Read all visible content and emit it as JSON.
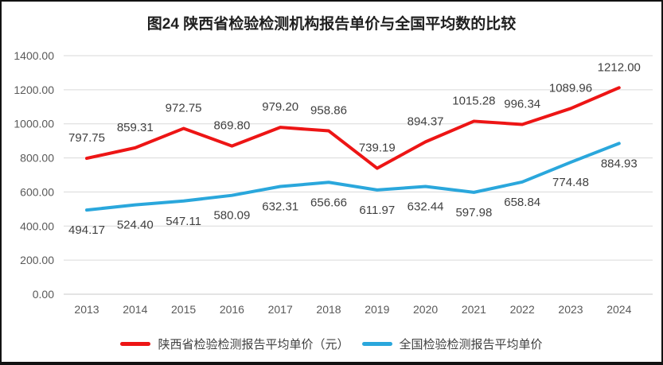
{
  "chart_data": {
    "type": "line",
    "title": "图24 陕西省检验检测机构报告单价与全国平均数的比较",
    "categories": [
      "2013",
      "2014",
      "2015",
      "2016",
      "2017",
      "2018",
      "2019",
      "2020",
      "2021",
      "2022",
      "2023",
      "2024"
    ],
    "series": [
      {
        "name": "陕西省检验检测报告平均单价（元）",
        "color": "#ed1515",
        "label_position": "above",
        "values": [
          797.75,
          859.31,
          972.75,
          869.8,
          979.2,
          958.86,
          739.19,
          894.37,
          1015.28,
          996.34,
          1089.96,
          1212.0
        ]
      },
      {
        "name": "全国检验检测报告平均单价",
        "color": "#2aa7dc",
        "label_position": "below",
        "values": [
          494.17,
          524.4,
          547.11,
          580.09,
          632.31,
          656.66,
          611.97,
          632.44,
          597.98,
          658.84,
          774.48,
          884.93
        ]
      }
    ],
    "ylim": [
      0,
      1400
    ],
    "ytick_labels": [
      "1400.00",
      "1200.00",
      "1000.00",
      "800.00",
      "600.00",
      "400.00",
      "200.00",
      "0.00"
    ],
    "grid": true,
    "data_labels": true,
    "legend_position": "bottom"
  },
  "colors": {
    "grid": "#d9d9d9",
    "baseline": "#c9c9c9",
    "axis_text": "#595959",
    "data_label_text": "#3f3f3f"
  }
}
